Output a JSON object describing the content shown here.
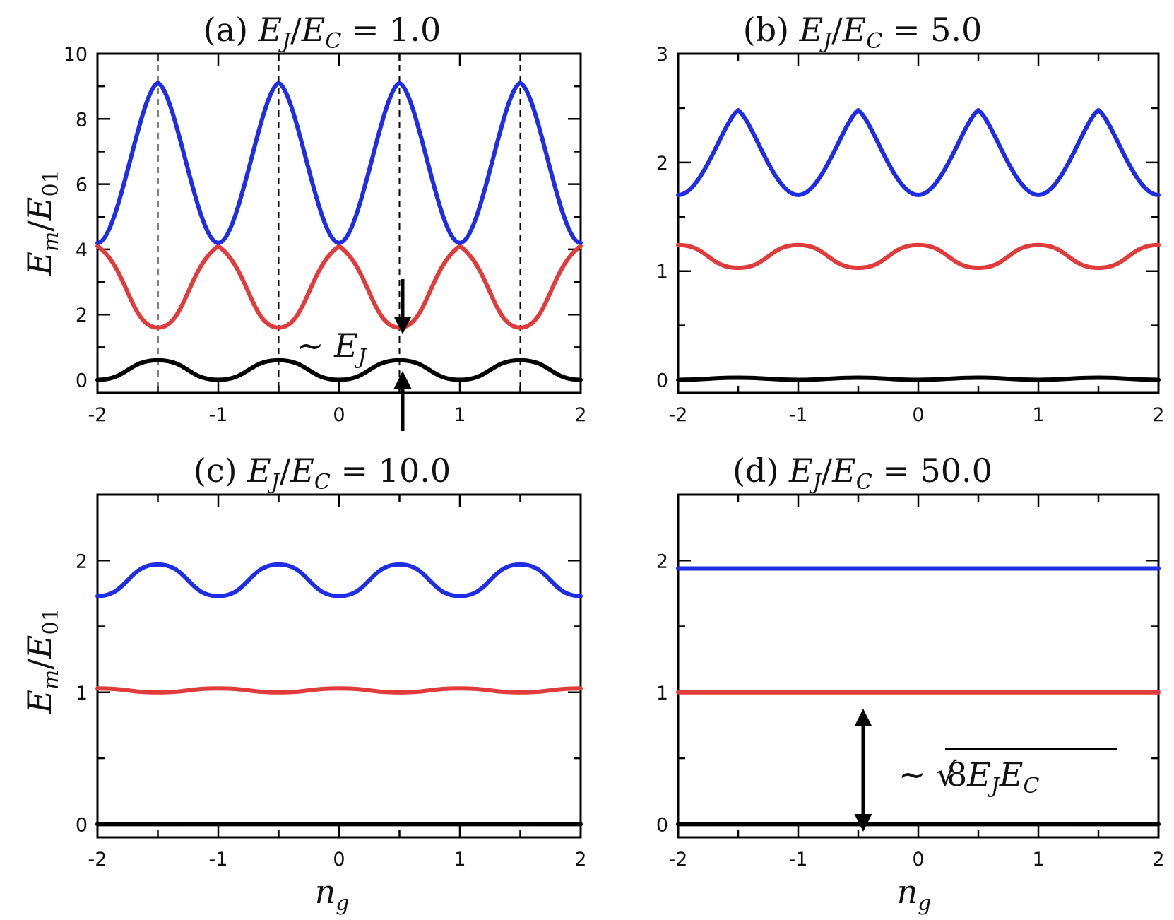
{
  "colors": {
    "ground": "#000000",
    "first": "#e23b3b",
    "second": "#1f2de6"
  },
  "chart_data": [
    {
      "id": "a",
      "type": "line",
      "title_prefix": "(a)",
      "title_ratio": "1.0",
      "ylabel": "E_m/E_01",
      "xlabel": "",
      "xlim": [
        -2,
        2
      ],
      "ylim": [
        0,
        10
      ],
      "xticks": [
        "-2",
        "-1",
        "0",
        "1",
        "2"
      ],
      "yticks": [
        "0",
        "2",
        "4",
        "6",
        "8",
        "10"
      ],
      "dashed_x": [
        -1.5,
        -0.5,
        0.5,
        1.5
      ],
      "series": [
        {
          "level": 0,
          "color": "#000000",
          "x": [
            -2,
            -1.5,
            -1,
            -0.5,
            0,
            0.5,
            1,
            1.5,
            2
          ],
          "y": [
            0,
            0.6,
            0,
            0.6,
            0,
            0.6,
            0,
            0.6,
            0
          ]
        },
        {
          "level": 1,
          "color": "#e23b3b",
          "x": [
            -2,
            -1.5,
            -1,
            -0.5,
            0,
            0.5,
            1,
            1.5,
            2
          ],
          "y": [
            4.1,
            1.6,
            4.1,
            1.6,
            4.1,
            1.6,
            4.1,
            1.6,
            4.1
          ]
        },
        {
          "level": 2,
          "color": "#1f2de6",
          "x": [
            -2,
            -1.5,
            -1,
            -0.5,
            0,
            0.5,
            1,
            1.5,
            2
          ],
          "y": [
            4.2,
            9.1,
            4.2,
            9.1,
            4.2,
            9.1,
            4.2,
            9.1,
            4.2
          ]
        }
      ],
      "annotation": "~ E_J"
    },
    {
      "id": "b",
      "type": "line",
      "title_prefix": "(b)",
      "title_ratio": "5.0",
      "xlabel": "",
      "ylabel": "",
      "xlim": [
        -2,
        2
      ],
      "ylim": [
        0,
        3
      ],
      "xticks": [
        "-2",
        "-1",
        "0",
        "1",
        "2"
      ],
      "yticks": [
        "0",
        "1",
        "2",
        "3"
      ],
      "series": [
        {
          "level": 0,
          "color": "#000000",
          "x": [
            -2,
            -1.5,
            -1,
            -0.5,
            0,
            0.5,
            1,
            1.5,
            2
          ],
          "y": [
            0,
            0.02,
            0,
            0.02,
            0,
            0.02,
            0,
            0.02,
            0
          ]
        },
        {
          "level": 1,
          "color": "#e23b3b",
          "x": [
            -2,
            -1.5,
            -1,
            -0.5,
            0,
            0.5,
            1,
            1.5,
            2
          ],
          "y": [
            1.24,
            1.03,
            1.24,
            1.03,
            1.24,
            1.03,
            1.24,
            1.03,
            1.24
          ]
        },
        {
          "level": 2,
          "color": "#1f2de6",
          "x": [
            -2,
            -1.5,
            -1,
            -0.5,
            0,
            0.5,
            1,
            1.5,
            2
          ],
          "y": [
            1.7,
            2.48,
            1.7,
            2.48,
            1.7,
            2.48,
            1.7,
            2.48,
            1.7
          ]
        }
      ]
    },
    {
      "id": "c",
      "type": "line",
      "title_prefix": "(c)",
      "title_ratio": "10.0",
      "ylabel": "E_m/E_01",
      "xlabel": "n_g",
      "xlim": [
        -2,
        2
      ],
      "ylim": [
        0,
        2.5
      ],
      "xticks": [
        "-2",
        "-1",
        "0",
        "1",
        "2"
      ],
      "yticks": [
        "0",
        "1",
        "2"
      ],
      "series": [
        {
          "level": 0,
          "color": "#000000",
          "x": [
            -2,
            -1,
            0,
            1,
            2
          ],
          "y": [
            0,
            0,
            0,
            0,
            0
          ]
        },
        {
          "level": 1,
          "color": "#e23b3b",
          "x": [
            -2,
            -1.5,
            -1,
            -0.5,
            0,
            0.5,
            1,
            1.5,
            2
          ],
          "y": [
            1.03,
            1.0,
            1.03,
            1.0,
            1.03,
            1.0,
            1.03,
            1.0,
            1.03
          ]
        },
        {
          "level": 2,
          "color": "#1f2de6",
          "x": [
            -2,
            -1.5,
            -1,
            -0.5,
            0,
            0.5,
            1,
            1.5,
            2
          ],
          "y": [
            1.73,
            1.97,
            1.73,
            1.97,
            1.73,
            1.97,
            1.73,
            1.97,
            1.73
          ]
        }
      ]
    },
    {
      "id": "d",
      "type": "line",
      "title_prefix": "(d)",
      "title_ratio": "50.0",
      "xlabel": "n_g",
      "ylabel": "",
      "xlim": [
        -2,
        2
      ],
      "ylim": [
        0,
        2.5
      ],
      "xticks": [
        "-2",
        "-1",
        "0",
        "1",
        "2"
      ],
      "yticks": [
        "0",
        "1",
        "2"
      ],
      "series": [
        {
          "level": 0,
          "color": "#000000",
          "x": [
            -2,
            2
          ],
          "y": [
            0,
            0
          ]
        },
        {
          "level": 1,
          "color": "#e23b3b",
          "x": [
            -2,
            2
          ],
          "y": [
            1.0,
            1.0
          ]
        },
        {
          "level": 2,
          "color": "#1f2de6",
          "x": [
            -2,
            2
          ],
          "y": [
            1.94,
            1.94
          ]
        }
      ],
      "annotation": "~ √(8 E_J E_C)"
    }
  ]
}
